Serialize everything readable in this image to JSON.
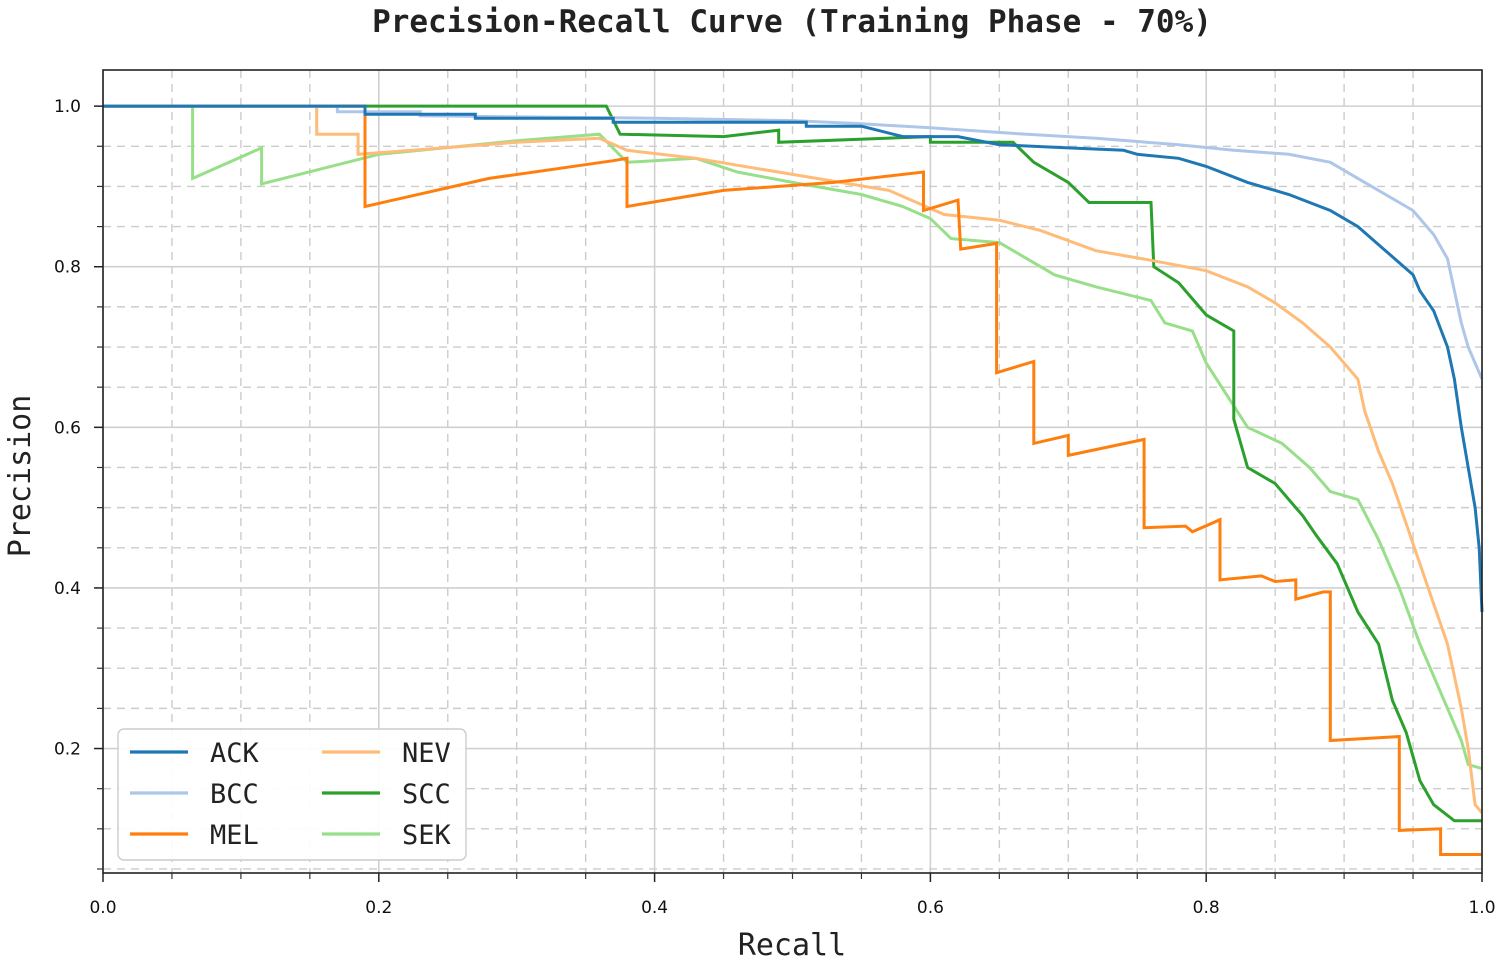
{
  "chart_data": {
    "type": "line",
    "title": "Precision-Recall Curve (Training Phase - 70%)",
    "xlabel": "Recall",
    "ylabel": "Precision",
    "xlim": [
      0.0,
      1.0
    ],
    "ylim": [
      0.045,
      1.045
    ],
    "xticks": [
      "0.0",
      "0.2",
      "0.4",
      "0.6",
      "0.8",
      "1.0"
    ],
    "yticks": [
      "0.2",
      "0.4",
      "0.6",
      "0.8",
      "1.0"
    ],
    "grid": true,
    "legend_position": "lower-left",
    "series": [
      {
        "name": "ACK",
        "color": "#1f77b4",
        "points": [
          [
            0,
            1.0
          ],
          [
            0.19,
            1.0
          ],
          [
            0.19,
            0.99
          ],
          [
            0.27,
            0.99
          ],
          [
            0.27,
            0.985
          ],
          [
            0.37,
            0.985
          ],
          [
            0.37,
            0.98
          ],
          [
            0.51,
            0.98
          ],
          [
            0.51,
            0.975
          ],
          [
            0.55,
            0.975
          ],
          [
            0.58,
            0.962
          ],
          [
            0.62,
            0.962
          ],
          [
            0.65,
            0.952
          ],
          [
            0.7,
            0.948
          ],
          [
            0.74,
            0.945
          ],
          [
            0.75,
            0.94
          ],
          [
            0.78,
            0.935
          ],
          [
            0.8,
            0.925
          ],
          [
            0.83,
            0.905
          ],
          [
            0.86,
            0.89
          ],
          [
            0.89,
            0.87
          ],
          [
            0.91,
            0.85
          ],
          [
            0.93,
            0.82
          ],
          [
            0.95,
            0.79
          ],
          [
            0.955,
            0.77
          ],
          [
            0.965,
            0.745
          ],
          [
            0.975,
            0.7
          ],
          [
            0.98,
            0.66
          ],
          [
            0.985,
            0.6
          ],
          [
            0.99,
            0.55
          ],
          [
            0.995,
            0.5
          ],
          [
            0.998,
            0.45
          ],
          [
            1.0,
            0.37
          ]
        ]
      },
      {
        "name": "BCC",
        "color": "#aec7e8",
        "points": [
          [
            0,
            1.0
          ],
          [
            0.17,
            1.0
          ],
          [
            0.17,
            0.993
          ],
          [
            0.23,
            0.993
          ],
          [
            0.23,
            0.988
          ],
          [
            0.4,
            0.985
          ],
          [
            0.5,
            0.982
          ],
          [
            0.55,
            0.978
          ],
          [
            0.6,
            0.973
          ],
          [
            0.66,
            0.966
          ],
          [
            0.72,
            0.96
          ],
          [
            0.78,
            0.952
          ],
          [
            0.82,
            0.945
          ],
          [
            0.86,
            0.94
          ],
          [
            0.89,
            0.93
          ],
          [
            0.91,
            0.91
          ],
          [
            0.93,
            0.89
          ],
          [
            0.95,
            0.87
          ],
          [
            0.965,
            0.84
          ],
          [
            0.975,
            0.81
          ],
          [
            0.98,
            0.77
          ],
          [
            0.985,
            0.73
          ],
          [
            0.99,
            0.7
          ],
          [
            0.995,
            0.68
          ],
          [
            1.0,
            0.66
          ]
        ]
      },
      {
        "name": "MEL",
        "color": "#ff7f0e",
        "points": [
          [
            0,
            1.0
          ],
          [
            0.19,
            1.0
          ],
          [
            0.19,
            0.875
          ],
          [
            0.28,
            0.91
          ],
          [
            0.37,
            0.932
          ],
          [
            0.38,
            0.935
          ],
          [
            0.38,
            0.875
          ],
          [
            0.45,
            0.895
          ],
          [
            0.53,
            0.905
          ],
          [
            0.595,
            0.918
          ],
          [
            0.595,
            0.87
          ],
          [
            0.62,
            0.883
          ],
          [
            0.622,
            0.822
          ],
          [
            0.648,
            0.829
          ],
          [
            0.648,
            0.668
          ],
          [
            0.675,
            0.682
          ],
          [
            0.675,
            0.58
          ],
          [
            0.7,
            0.59
          ],
          [
            0.7,
            0.565
          ],
          [
            0.755,
            0.585
          ],
          [
            0.755,
            0.475
          ],
          [
            0.785,
            0.477
          ],
          [
            0.79,
            0.47
          ],
          [
            0.81,
            0.485
          ],
          [
            0.81,
            0.41
          ],
          [
            0.84,
            0.415
          ],
          [
            0.85,
            0.408
          ],
          [
            0.865,
            0.41
          ],
          [
            0.865,
            0.386
          ],
          [
            0.885,
            0.395
          ],
          [
            0.89,
            0.395
          ],
          [
            0.89,
            0.21
          ],
          [
            0.94,
            0.215
          ],
          [
            0.94,
            0.098
          ],
          [
            0.97,
            0.1
          ],
          [
            0.97,
            0.068
          ],
          [
            1.0,
            0.068
          ]
        ]
      },
      {
        "name": "NEV",
        "color": "#ffbb78",
        "points": [
          [
            0,
            1.0
          ],
          [
            0.155,
            1.0
          ],
          [
            0.155,
            0.965
          ],
          [
            0.185,
            0.965
          ],
          [
            0.185,
            0.94
          ],
          [
            0.3,
            0.955
          ],
          [
            0.36,
            0.96
          ],
          [
            0.38,
            0.945
          ],
          [
            0.43,
            0.935
          ],
          [
            0.5,
            0.915
          ],
          [
            0.57,
            0.895
          ],
          [
            0.61,
            0.865
          ],
          [
            0.65,
            0.858
          ],
          [
            0.68,
            0.845
          ],
          [
            0.72,
            0.82
          ],
          [
            0.76,
            0.808
          ],
          [
            0.8,
            0.795
          ],
          [
            0.83,
            0.775
          ],
          [
            0.85,
            0.755
          ],
          [
            0.87,
            0.73
          ],
          [
            0.89,
            0.7
          ],
          [
            0.91,
            0.66
          ],
          [
            0.915,
            0.62
          ],
          [
            0.925,
            0.57
          ],
          [
            0.935,
            0.53
          ],
          [
            0.945,
            0.48
          ],
          [
            0.955,
            0.43
          ],
          [
            0.965,
            0.38
          ],
          [
            0.975,
            0.33
          ],
          [
            0.985,
            0.25
          ],
          [
            0.99,
            0.2
          ],
          [
            0.995,
            0.13
          ],
          [
            1.0,
            0.12
          ]
        ]
      },
      {
        "name": "SCC",
        "color": "#2ca02c",
        "points": [
          [
            0,
            1.0
          ],
          [
            0.365,
            1.0
          ],
          [
            0.375,
            0.965
          ],
          [
            0.45,
            0.962
          ],
          [
            0.49,
            0.97
          ],
          [
            0.49,
            0.955
          ],
          [
            0.6,
            0.962
          ],
          [
            0.6,
            0.955
          ],
          [
            0.66,
            0.955
          ],
          [
            0.675,
            0.93
          ],
          [
            0.7,
            0.905
          ],
          [
            0.715,
            0.88
          ],
          [
            0.76,
            0.88
          ],
          [
            0.762,
            0.8
          ],
          [
            0.78,
            0.78
          ],
          [
            0.8,
            0.74
          ],
          [
            0.82,
            0.72
          ],
          [
            0.82,
            0.61
          ],
          [
            0.83,
            0.55
          ],
          [
            0.85,
            0.53
          ],
          [
            0.87,
            0.49
          ],
          [
            0.88,
            0.465
          ],
          [
            0.895,
            0.43
          ],
          [
            0.91,
            0.37
          ],
          [
            0.925,
            0.33
          ],
          [
            0.935,
            0.26
          ],
          [
            0.945,
            0.22
          ],
          [
            0.955,
            0.16
          ],
          [
            0.965,
            0.13
          ],
          [
            0.98,
            0.11
          ],
          [
            1.0,
            0.11
          ]
        ]
      },
      {
        "name": "SEK",
        "color": "#98df8a",
        "points": [
          [
            0,
            1.0
          ],
          [
            0.065,
            1.0
          ],
          [
            0.065,
            0.91
          ],
          [
            0.115,
            0.948
          ],
          [
            0.115,
            0.903
          ],
          [
            0.2,
            0.94
          ],
          [
            0.3,
            0.957
          ],
          [
            0.36,
            0.965
          ],
          [
            0.38,
            0.93
          ],
          [
            0.43,
            0.935
          ],
          [
            0.46,
            0.918
          ],
          [
            0.5,
            0.905
          ],
          [
            0.55,
            0.89
          ],
          [
            0.58,
            0.875
          ],
          [
            0.6,
            0.86
          ],
          [
            0.615,
            0.835
          ],
          [
            0.65,
            0.83
          ],
          [
            0.67,
            0.81
          ],
          [
            0.69,
            0.79
          ],
          [
            0.72,
            0.775
          ],
          [
            0.76,
            0.758
          ],
          [
            0.77,
            0.73
          ],
          [
            0.79,
            0.72
          ],
          [
            0.8,
            0.68
          ],
          [
            0.815,
            0.64
          ],
          [
            0.83,
            0.6
          ],
          [
            0.855,
            0.58
          ],
          [
            0.875,
            0.55
          ],
          [
            0.89,
            0.52
          ],
          [
            0.91,
            0.51
          ],
          [
            0.925,
            0.46
          ],
          [
            0.94,
            0.4
          ],
          [
            0.955,
            0.33
          ],
          [
            0.97,
            0.27
          ],
          [
            0.985,
            0.21
          ],
          [
            0.99,
            0.18
          ],
          [
            1.0,
            0.175
          ]
        ]
      }
    ]
  }
}
